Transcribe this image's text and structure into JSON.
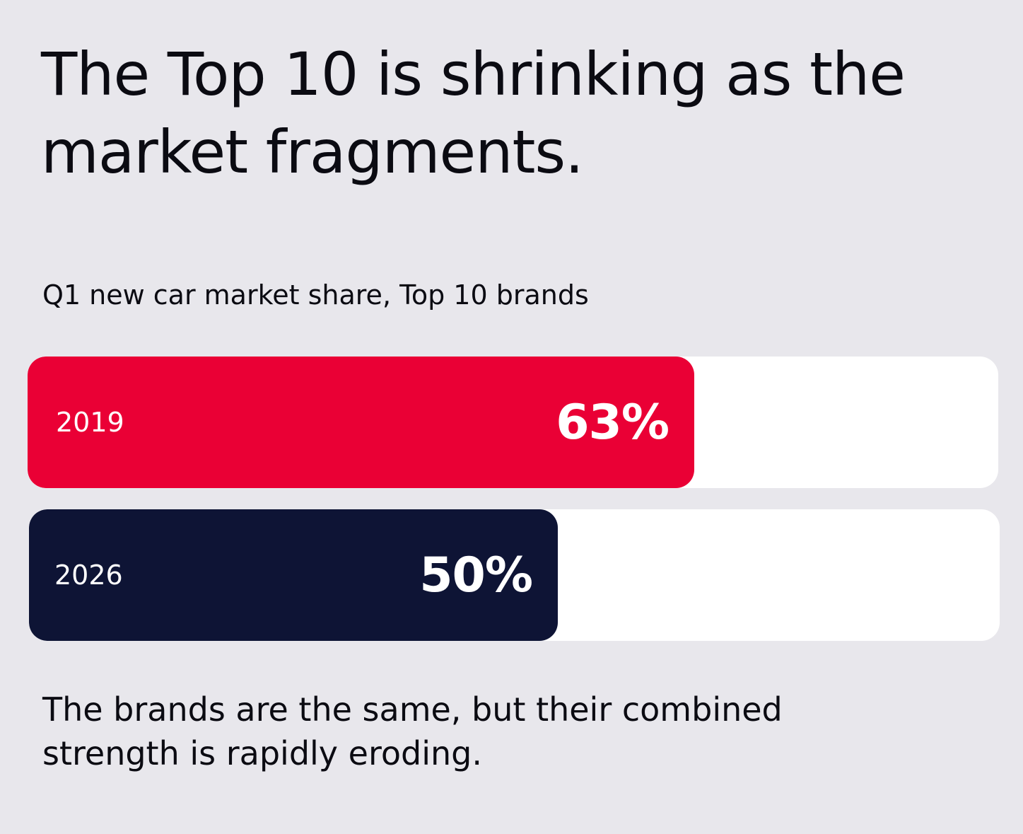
{
  "headline": "The Top 10 is shrinking as the market fragments.",
  "colors": {
    "background": "#e8e7ec",
    "track": "#ffffff",
    "bar_2019": "#ea0035",
    "bar_2026": "#0e1435",
    "text": "#0b0b12",
    "on_bar_text": "#ffffff"
  },
  "chart_data": {
    "type": "bar",
    "orientation": "horizontal",
    "title": "Q1 new car market share, Top 10 brands",
    "unit": "%",
    "xlim": [
      0,
      100
    ],
    "categories": [
      "2019",
      "2026"
    ],
    "values": [
      63,
      50
    ],
    "value_labels": [
      "63%",
      "50%"
    ],
    "bar_colors": [
      "#ea0035",
      "#0e1435"
    ]
  },
  "footnote": "The brands are the same, but their combined strength is rapidly eroding."
}
